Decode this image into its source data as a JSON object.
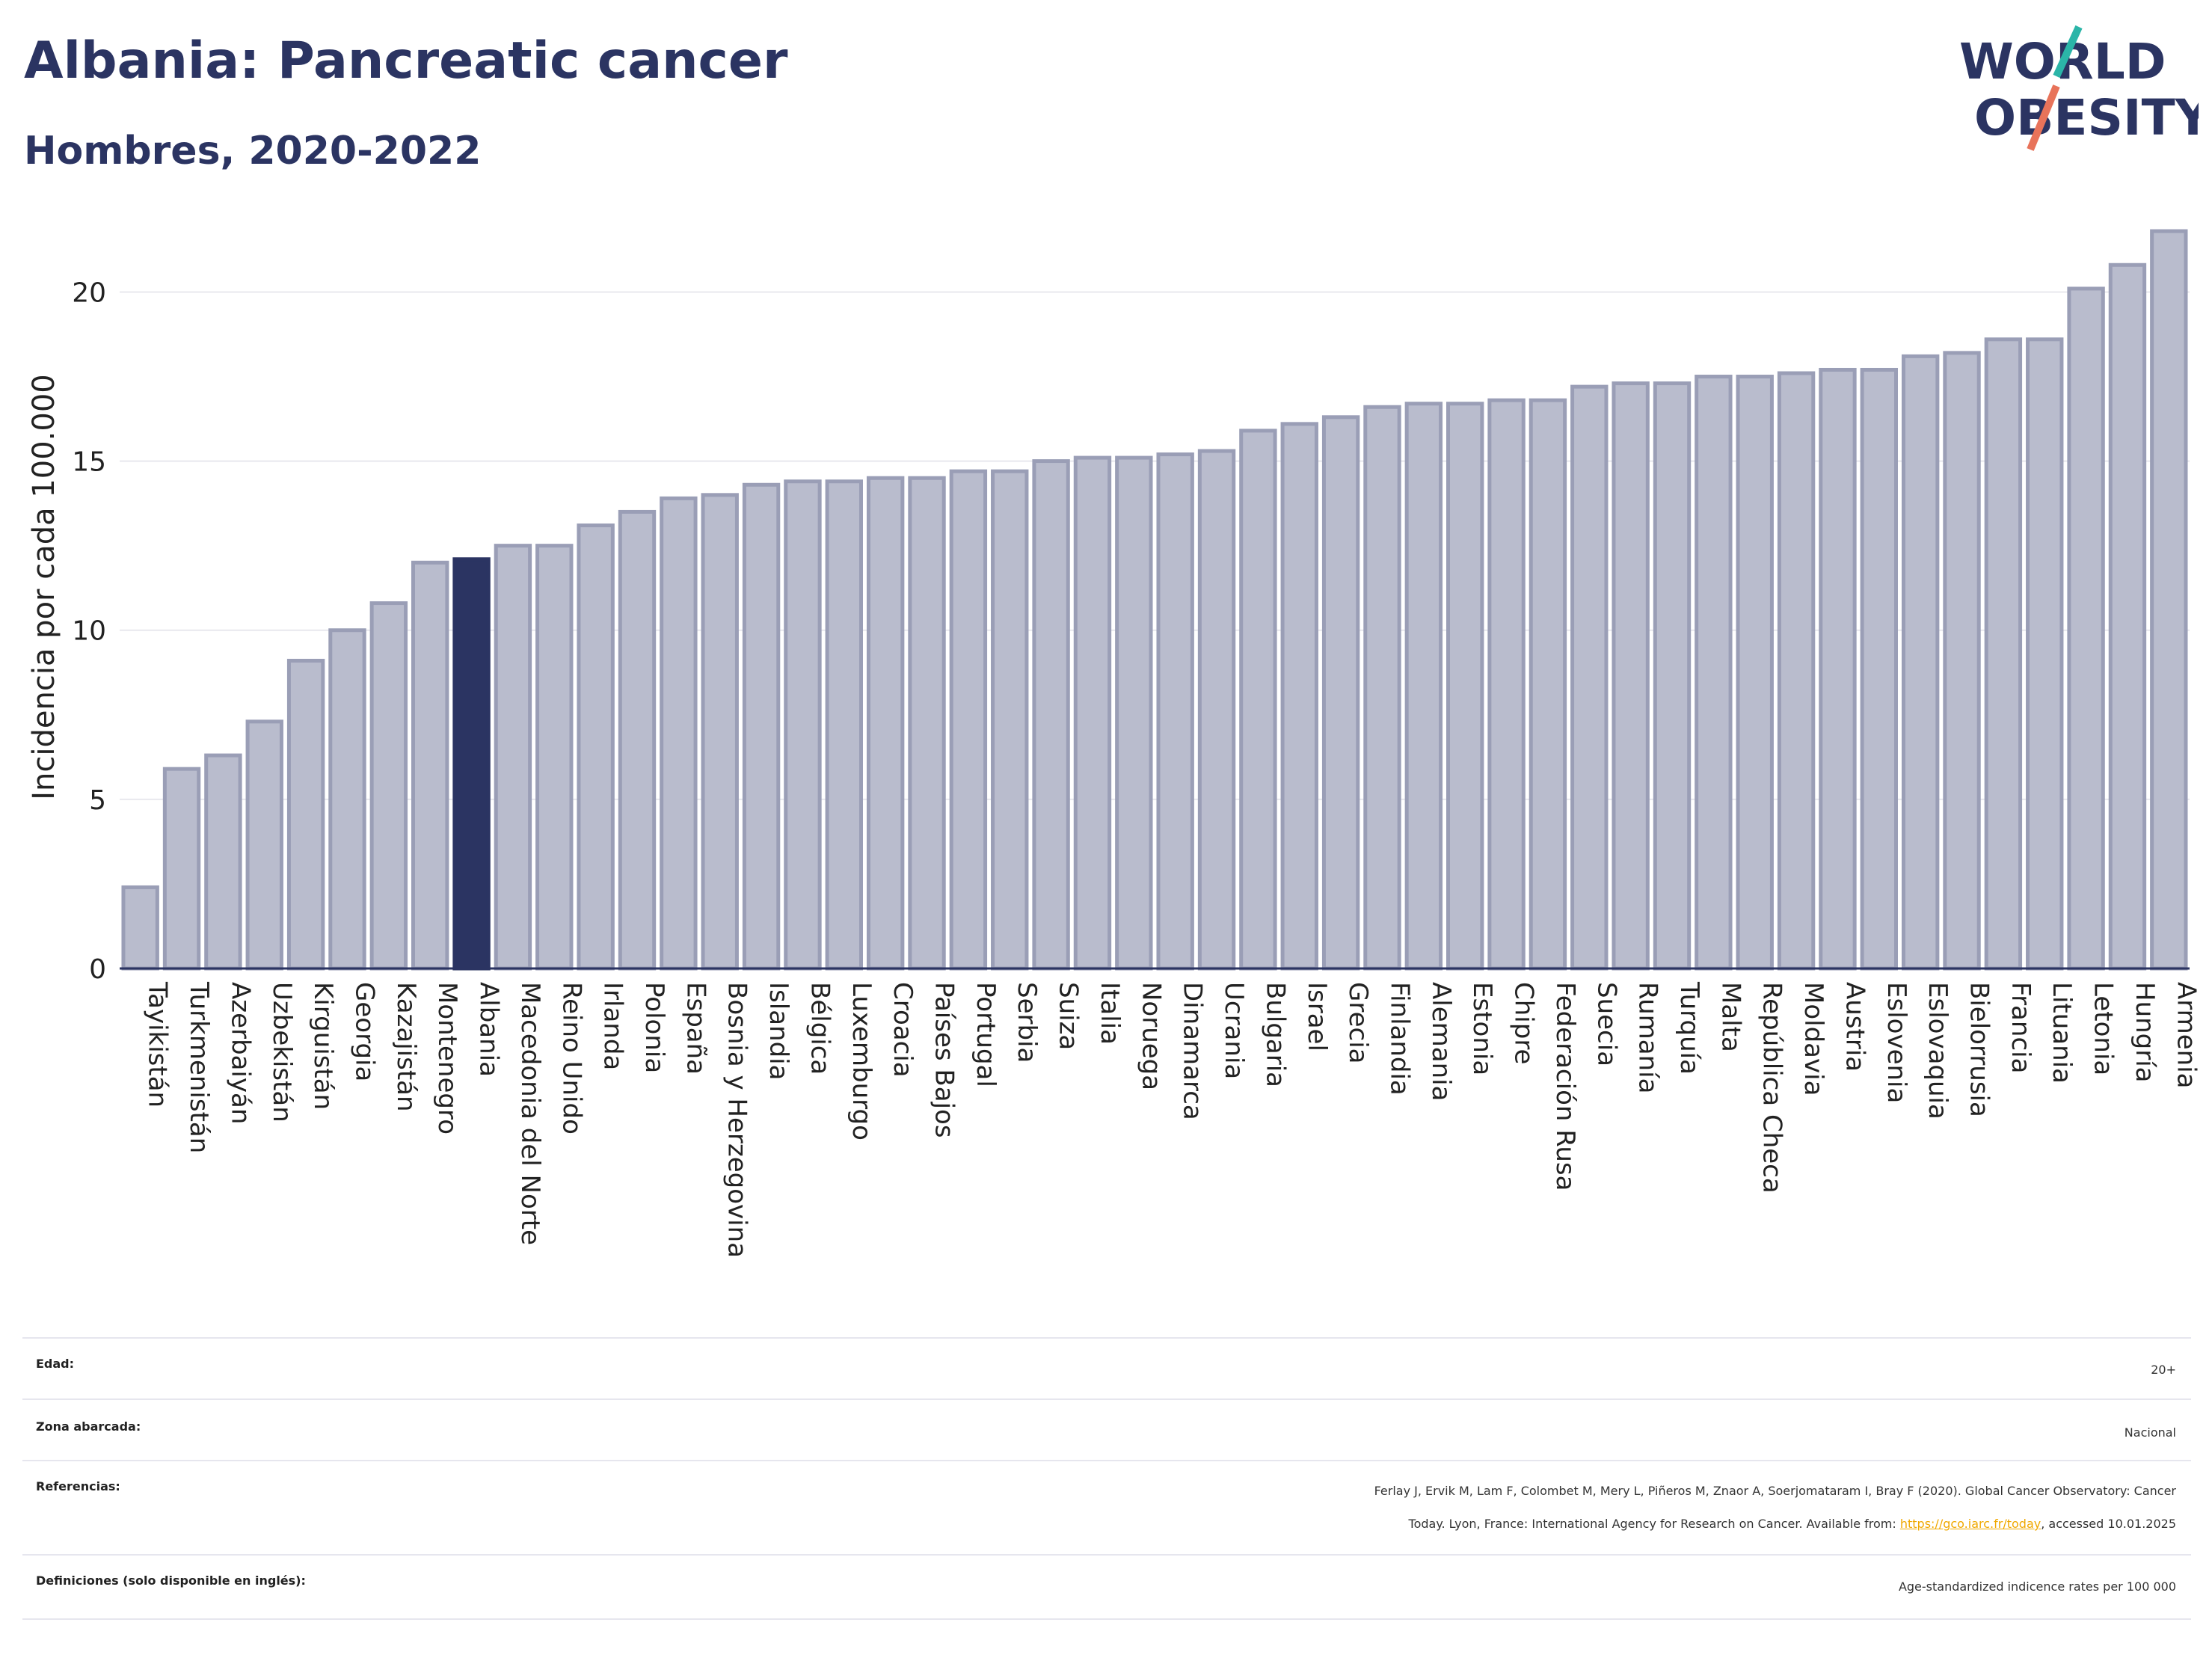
{
  "header": {
    "title": "Albania: Pancreatic cancer",
    "subtitle": "Hombres, 2020-2022"
  },
  "logo": {
    "line1": "WORLD",
    "line2": "OBESITY",
    "accent1": "#2bb5a8",
    "accent2": "#e8735a",
    "text_color": "#2b3462"
  },
  "chart_data": {
    "type": "bar",
    "ylabel": "Incidencia por cada 100.000",
    "ylim": [
      0,
      22
    ],
    "yticks": [
      0,
      5,
      10,
      15,
      20
    ],
    "grid": true,
    "highlight": "Albania",
    "colors": {
      "bar": "#b9bccd",
      "bar_edge": "#9a9eb6",
      "highlight": "#2b3462",
      "axis": "#2b3462",
      "grid": "#e8e8ee"
    },
    "categories": [
      "Tayikistán",
      "Turkmenistán",
      "Azerbaiyán",
      "Uzbekistán",
      "Kirguistán",
      "Georgia",
      "Kazajistán",
      "Montenegro",
      "Albania",
      "Macedonia del Norte",
      "Reino Unido",
      "Irlanda",
      "Polonia",
      "España",
      "Bosnia y Herzegovina",
      "Islandia",
      "Bélgica",
      "Luxemburgo",
      "Croacia",
      "Países Bajos",
      "Portugal",
      "Serbia",
      "Suiza",
      "Italia",
      "Noruega",
      "Dinamarca",
      "Ucrania",
      "Bulgaria",
      "Israel",
      "Grecia",
      "Finlandia",
      "Alemania",
      "Estonia",
      "Chipre",
      "Federación Rusa",
      "Suecia",
      "Rumanía",
      "Turquía",
      "Malta",
      "República Checa",
      "Moldavia",
      "Austria",
      "Eslovenia",
      "Eslovaquia",
      "Bielorrusia",
      "Francia",
      "Lituania",
      "Letonia",
      "Hungría",
      "Armenia"
    ],
    "values": [
      2.4,
      5.9,
      6.3,
      7.3,
      9.1,
      10.0,
      10.8,
      12.0,
      12.1,
      12.5,
      12.5,
      13.1,
      13.5,
      13.9,
      14.0,
      14.3,
      14.4,
      14.4,
      14.5,
      14.5,
      14.7,
      14.7,
      15.0,
      15.1,
      15.1,
      15.2,
      15.3,
      15.9,
      16.1,
      16.3,
      16.6,
      16.7,
      16.7,
      16.8,
      16.8,
      17.2,
      17.3,
      17.3,
      17.5,
      17.5,
      17.6,
      17.7,
      17.7,
      18.1,
      18.2,
      18.6,
      18.6,
      20.1,
      20.8,
      21.8
    ]
  },
  "info": {
    "age_label": "Edad:",
    "age_value": "20+",
    "zone_label": "Zona abarcada:",
    "zone_value": "Nacional",
    "refs_label": "Referencias:",
    "refs_line1": "Ferlay J, Ervik M, Lam F, Colombet M, Mery L, Piñeros M, Znaor A, Soerjomataram I, Bray F (2020). Global Cancer Observatory: Cancer",
    "refs_line2_pre": "Today. Lyon, France: International Agency for Research on Cancer. Available from: ",
    "refs_link": "https://gco.iarc.fr/today",
    "refs_line2_post": ", accessed 10.01.2025",
    "defs_label": "Definiciones (solo disponible en inglés):",
    "defs_value": "Age-standardized indicence rates per 100 000"
  }
}
